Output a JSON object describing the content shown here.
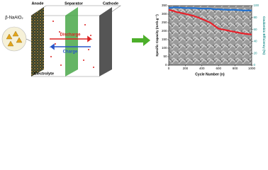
{
  "diagram": {
    "material": "β-NaAlO₂",
    "anode": "Anode",
    "separator": "Separator",
    "cathode": "Cathode",
    "discharge": "Discharge",
    "charge": "Charge",
    "electrolyte": "Electrolyte"
  },
  "chart_data": {
    "type": "line",
    "xlabel": "Cycle Number (n)",
    "ylabel": "Specific Capacity (mAh.g⁻¹)",
    "y2label": "Coulombic Efficiency (%)",
    "x": [
      0,
      50,
      100,
      200,
      300,
      400,
      500,
      550,
      600,
      700,
      800,
      900,
      1000
    ],
    "series": [
      {
        "name": "Specific Capacity",
        "color": "#e8202a",
        "values": [
          325,
          320,
          312,
          302,
          290,
          272,
          250,
          232,
          215,
          205,
          195,
          186,
          180
        ]
      },
      {
        "name": "Coulombic Efficiency",
        "color": "#1e6fd0",
        "axis": "y2",
        "values": [
          96,
          97,
          97,
          96,
          96,
          95,
          95,
          94,
          94,
          93,
          93,
          92,
          92
        ]
      }
    ],
    "xlim": [
      0,
      1000
    ],
    "xticks": [
      0,
      200,
      400,
      600,
      800,
      1000
    ],
    "ylim": [
      0,
      350
    ],
    "yticks": [
      0,
      50,
      100,
      150,
      200,
      250,
      300,
      350
    ],
    "y2lim": [
      0,
      100
    ],
    "y2ticks": [
      0,
      20,
      40,
      60,
      80,
      100
    ]
  }
}
